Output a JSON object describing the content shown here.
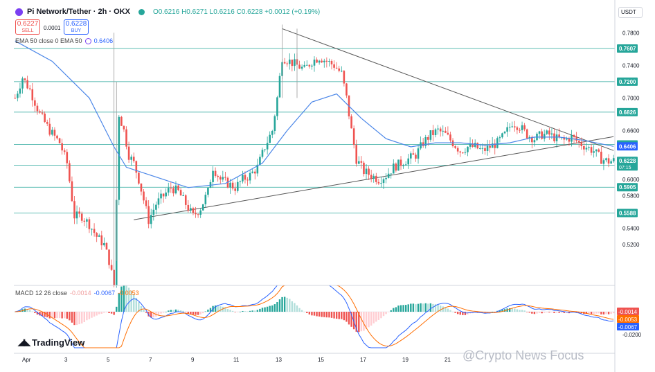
{
  "header": {
    "title": "Pi Network/Tether · 2h · OKX",
    "ohlc": "O0.6216 H0.6271 L0.6216 C0.6228 +0.0012 (+0.19%)"
  },
  "trade": {
    "sell_price": "0.6227",
    "sell_label": "SELL",
    "spread": "0.0001",
    "buy_price": "0.6228",
    "buy_label": "BUY"
  },
  "ema_legend": {
    "label": "EMA 50 close 0 EMA 50",
    "value": "0.6406"
  },
  "macd_legend": {
    "label": "MACD 12 26 close",
    "hist": "-0.0014",
    "macd": "-0.0067",
    "signal": "-0.0053"
  },
  "currency": "USDT",
  "brand": "TradingView",
  "watermark": "@Crypto News Focus",
  "chart_data": {
    "type": "candlestick",
    "price_axis": {
      "ticks": [
        "0.7800",
        "0.7400",
        "0.7000",
        "0.6600",
        "0.6000",
        "0.5800",
        "0.5400",
        "0.5200"
      ],
      "range": [
        0.47,
        0.81
      ]
    },
    "time_axis": {
      "labels": [
        "Apr",
        "3",
        "5",
        "7",
        "9",
        "11",
        "13",
        "15",
        "17",
        "19",
        "21"
      ]
    },
    "levels": [
      {
        "value": 0.7607,
        "label": "0.7607",
        "color": "#26a69a"
      },
      {
        "value": 0.72,
        "label": "0.7200",
        "color": "#26a69a"
      },
      {
        "value": 0.6826,
        "label": "0.6826",
        "color": "#26a69a"
      },
      {
        "value": 0.643,
        "label": "0.6430",
        "color": "#26a69a"
      },
      {
        "value": 0.6175,
        "label": "0.6175",
        "color": "#26a69a"
      },
      {
        "value": 0.5905,
        "label": "0.5905",
        "color": "#26a69a"
      },
      {
        "value": 0.5588,
        "label": "0.5588",
        "color": "#26a69a"
      }
    ],
    "price_labels": [
      {
        "value": 0.6406,
        "label": "0.6406",
        "color": "#2962ff"
      },
      {
        "value": 0.6228,
        "label": "0.6228",
        "color": "#26a69a"
      }
    ],
    "countdown": "07:15",
    "close_path": [
      [
        0,
        0.7
      ],
      [
        3,
        0.725
      ],
      [
        6,
        0.71
      ],
      [
        10,
        0.68
      ],
      [
        14,
        0.66
      ],
      [
        18,
        0.645
      ],
      [
        21,
        0.62
      ],
      [
        24,
        0.555
      ],
      [
        27,
        0.555
      ],
      [
        30,
        0.545
      ],
      [
        33,
        0.53
      ],
      [
        36,
        0.52
      ],
      [
        38,
        0.5
      ],
      [
        40,
        0.47
      ],
      [
        42,
        0.68
      ],
      [
        44,
        0.66
      ],
      [
        46,
        0.63
      ],
      [
        48,
        0.62
      ],
      [
        50,
        0.6
      ],
      [
        52,
        0.575
      ],
      [
        54,
        0.55
      ],
      [
        57,
        0.57
      ],
      [
        60,
        0.58
      ],
      [
        63,
        0.59
      ],
      [
        66,
        0.585
      ],
      [
        69,
        0.57
      ],
      [
        72,
        0.555
      ],
      [
        75,
        0.565
      ],
      [
        78,
        0.585
      ],
      [
        80,
        0.615
      ],
      [
        83,
        0.6
      ],
      [
        86,
        0.595
      ],
      [
        89,
        0.59
      ],
      [
        92,
        0.6
      ],
      [
        95,
        0.605
      ],
      [
        98,
        0.615
      ],
      [
        101,
        0.64
      ],
      [
        104,
        0.66
      ],
      [
        106,
        0.7
      ],
      [
        108,
        0.75
      ],
      [
        111,
        0.745
      ],
      [
        114,
        0.74
      ],
      [
        117,
        0.735
      ],
      [
        120,
        0.745
      ],
      [
        123,
        0.75
      ],
      [
        126,
        0.745
      ],
      [
        129,
        0.74
      ],
      [
        132,
        0.73
      ],
      [
        134,
        0.7
      ],
      [
        136,
        0.66
      ],
      [
        138,
        0.625
      ],
      [
        141,
        0.61
      ],
      [
        144,
        0.605
      ],
      [
        147,
        0.6
      ],
      [
        150,
        0.605
      ],
      [
        153,
        0.615
      ],
      [
        156,
        0.62
      ],
      [
        159,
        0.625
      ],
      [
        162,
        0.63
      ],
      [
        165,
        0.645
      ],
      [
        168,
        0.655
      ],
      [
        171,
        0.66
      ],
      [
        174,
        0.655
      ],
      [
        177,
        0.645
      ],
      [
        180,
        0.635
      ],
      [
        183,
        0.64
      ],
      [
        186,
        0.64
      ],
      [
        189,
        0.635
      ],
      [
        192,
        0.64
      ],
      [
        195,
        0.645
      ],
      [
        198,
        0.655
      ],
      [
        201,
        0.67
      ],
      [
        204,
        0.665
      ],
      [
        207,
        0.655
      ],
      [
        210,
        0.65
      ],
      [
        213,
        0.655
      ],
      [
        216,
        0.655
      ],
      [
        219,
        0.65
      ],
      [
        222,
        0.648
      ],
      [
        225,
        0.652
      ],
      [
        228,
        0.645
      ],
      [
        231,
        0.64
      ],
      [
        234,
        0.635
      ],
      [
        237,
        0.625
      ],
      [
        240,
        0.622
      ],
      [
        242,
        0.623
      ]
    ],
    "ema_path": [
      [
        0,
        0.77
      ],
      [
        15,
        0.745
      ],
      [
        30,
        0.7
      ],
      [
        40,
        0.64
      ],
      [
        45,
        0.615
      ],
      [
        55,
        0.605
      ],
      [
        70,
        0.59
      ],
      [
        85,
        0.595
      ],
      [
        100,
        0.62
      ],
      [
        110,
        0.66
      ],
      [
        120,
        0.695
      ],
      [
        130,
        0.705
      ],
      [
        140,
        0.675
      ],
      [
        150,
        0.65
      ],
      [
        160,
        0.64
      ],
      [
        170,
        0.645
      ],
      [
        180,
        0.645
      ],
      [
        190,
        0.642
      ],
      [
        200,
        0.645
      ],
      [
        210,
        0.652
      ],
      [
        220,
        0.652
      ],
      [
        230,
        0.648
      ],
      [
        242,
        0.6406
      ]
    ],
    "trendlines": [
      {
        "from": [
          48,
          0.5505
        ],
        "to": [
          242,
          0.6525
        ]
      },
      {
        "from": [
          108,
          0.785
        ],
        "to": [
          242,
          0.6355
        ]
      }
    ],
    "macd_axis": {
      "ticks": [
        "-0.0200"
      ],
      "labels": [
        {
          "value": "-0.0014",
          "color": "#ef5350"
        },
        {
          "value": "-0.0053",
          "color": "#ff6d00"
        },
        {
          "value": "-0.0067",
          "color": "#2962ff"
        }
      ]
    }
  }
}
